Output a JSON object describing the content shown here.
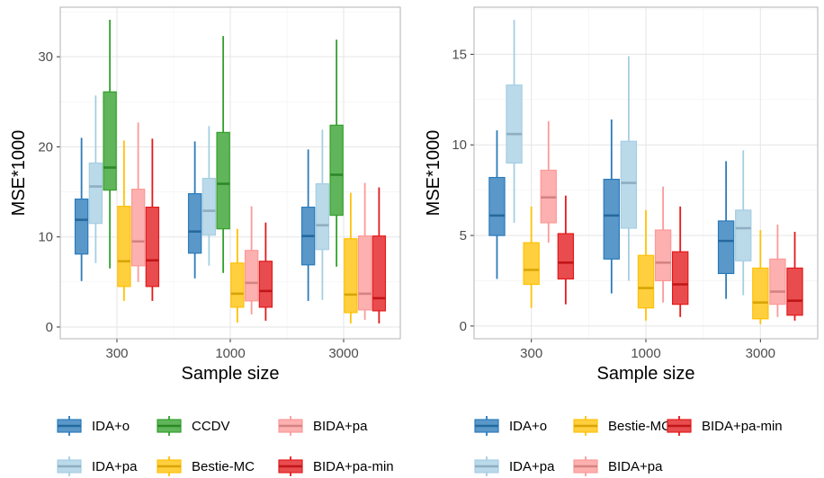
{
  "colors": {
    "IDA+o": "#2b7bba",
    "IDA+pa": "#a6cee3",
    "CCDV": "#33a02c",
    "Bestie-MC": "#ffc107",
    "BIDA+pa": "#fb9a99",
    "BIDA+pa-min": "#e31a1c"
  },
  "legend_left": [
    [
      "IDA+o",
      "CCDV",
      "BIDA+pa"
    ],
    [
      "IDA+pa",
      "Bestie-MC",
      "BIDA+pa-min"
    ]
  ],
  "legend_right": [
    [
      "IDA+o",
      "Bestie-MC",
      "BIDA+pa-min"
    ],
    [
      "IDA+pa",
      "BIDA+pa"
    ]
  ],
  "chart_data": [
    {
      "type": "boxplot",
      "xlabel": "Sample size",
      "ylabel": "MSE*1000",
      "categories": [
        "300",
        "1000",
        "3000"
      ],
      "ylim": [
        -1.3,
        35.5
      ],
      "yticks": [
        0,
        10,
        20,
        30
      ],
      "grid": true,
      "legend_position": "bottom",
      "series": [
        {
          "name": "IDA+o",
          "boxes": [
            {
              "min": 5.1,
              "q1": 8.1,
              "median": 11.9,
              "q3": 14.2,
              "max": 21.0
            },
            {
              "min": 5.4,
              "q1": 8.2,
              "median": 10.6,
              "q3": 14.8,
              "max": 20.6
            },
            {
              "min": 2.9,
              "q1": 6.9,
              "median": 10.1,
              "q3": 13.3,
              "max": 19.7
            }
          ]
        },
        {
          "name": "IDA+pa",
          "boxes": [
            {
              "min": 7.1,
              "q1": 11.5,
              "median": 15.6,
              "q3": 18.2,
              "max": 25.7
            },
            {
              "min": 6.8,
              "q1": 10.2,
              "median": 12.9,
              "q3": 16.5,
              "max": 22.3
            },
            {
              "min": 3.0,
              "q1": 8.6,
              "median": 11.3,
              "q3": 15.9,
              "max": 21.9
            }
          ]
        },
        {
          "name": "CCDV",
          "boxes": [
            {
              "min": 6.5,
              "q1": 15.2,
              "median": 17.7,
              "q3": 26.1,
              "max": 34.1
            },
            {
              "min": 6.0,
              "q1": 10.9,
              "median": 15.9,
              "q3": 21.6,
              "max": 32.3
            },
            {
              "min": 6.7,
              "q1": 12.4,
              "median": 16.9,
              "q3": 22.4,
              "max": 31.9
            }
          ]
        },
        {
          "name": "Bestie-MC",
          "boxes": [
            {
              "min": 2.9,
              "q1": 4.5,
              "median": 7.3,
              "q3": 13.4,
              "max": 20.7
            },
            {
              "min": 0.5,
              "q1": 2.2,
              "median": 3.7,
              "q3": 7.1,
              "max": 10.9
            },
            {
              "min": 0.4,
              "q1": 1.6,
              "median": 3.6,
              "q3": 9.8,
              "max": 14.9
            }
          ]
        },
        {
          "name": "BIDA+pa",
          "boxes": [
            {
              "min": 5.0,
              "q1": 6.8,
              "median": 9.5,
              "q3": 15.3,
              "max": 22.7
            },
            {
              "min": 1.4,
              "q1": 2.9,
              "median": 4.9,
              "q3": 8.5,
              "max": 13.4
            },
            {
              "min": 0.8,
              "q1": 1.9,
              "median": 3.7,
              "q3": 10.1,
              "max": 16.0
            }
          ]
        },
        {
          "name": "BIDA+pa-min",
          "boxes": [
            {
              "min": 2.9,
              "q1": 4.5,
              "median": 7.4,
              "q3": 13.3,
              "max": 20.9
            },
            {
              "min": 0.7,
              "q1": 2.2,
              "median": 4.0,
              "q3": 7.3,
              "max": 11.6
            },
            {
              "min": 0.4,
              "q1": 1.8,
              "median": 3.2,
              "q3": 10.1,
              "max": 15.5
            }
          ]
        }
      ]
    },
    {
      "type": "boxplot",
      "xlabel": "Sample size",
      "ylabel": "MSE*1000",
      "categories": [
        "300",
        "1000",
        "3000"
      ],
      "ylim": [
        -0.7,
        17.6
      ],
      "yticks": [
        0,
        5,
        10,
        15
      ],
      "grid": true,
      "legend_position": "bottom",
      "series": [
        {
          "name": "IDA+o",
          "boxes": [
            {
              "min": 2.6,
              "q1": 5.0,
              "median": 6.1,
              "q3": 8.2,
              "max": 10.8
            },
            {
              "min": 1.8,
              "q1": 3.7,
              "median": 6.1,
              "q3": 8.1,
              "max": 11.4
            },
            {
              "min": 1.5,
              "q1": 2.9,
              "median": 4.7,
              "q3": 5.8,
              "max": 9.1
            }
          ]
        },
        {
          "name": "IDA+pa",
          "boxes": [
            {
              "min": 5.7,
              "q1": 9.0,
              "median": 10.6,
              "q3": 13.3,
              "max": 16.9
            },
            {
              "min": 2.5,
              "q1": 5.4,
              "median": 7.9,
              "q3": 10.2,
              "max": 14.9
            },
            {
              "min": 1.7,
              "q1": 3.6,
              "median": 5.4,
              "q3": 6.4,
              "max": 9.7
            }
          ]
        },
        {
          "name": "Bestie-MC",
          "boxes": [
            {
              "min": 1.0,
              "q1": 2.3,
              "median": 3.1,
              "q3": 4.6,
              "max": 6.6
            },
            {
              "min": 0.3,
              "q1": 1.0,
              "median": 2.1,
              "q3": 3.9,
              "max": 6.4
            },
            {
              "min": 0.1,
              "q1": 0.4,
              "median": 1.3,
              "q3": 3.2,
              "max": 5.3
            }
          ]
        },
        {
          "name": "BIDA+pa",
          "boxes": [
            {
              "min": 4.6,
              "q1": 5.7,
              "median": 7.1,
              "q3": 8.6,
              "max": 11.3
            },
            {
              "min": 1.3,
              "q1": 2.5,
              "median": 3.5,
              "q3": 5.3,
              "max": 7.7
            },
            {
              "min": 0.5,
              "q1": 1.2,
              "median": 1.9,
              "q3": 3.7,
              "max": 5.6
            }
          ]
        },
        {
          "name": "BIDA+pa-min",
          "boxes": [
            {
              "min": 1.2,
              "q1": 2.6,
              "median": 3.5,
              "q3": 5.1,
              "max": 7.2
            },
            {
              "min": 0.5,
              "q1": 1.2,
              "median": 2.3,
              "q3": 4.1,
              "max": 6.6
            },
            {
              "min": 0.3,
              "q1": 0.6,
              "median": 1.4,
              "q3": 3.2,
              "max": 5.2
            }
          ]
        }
      ]
    }
  ]
}
